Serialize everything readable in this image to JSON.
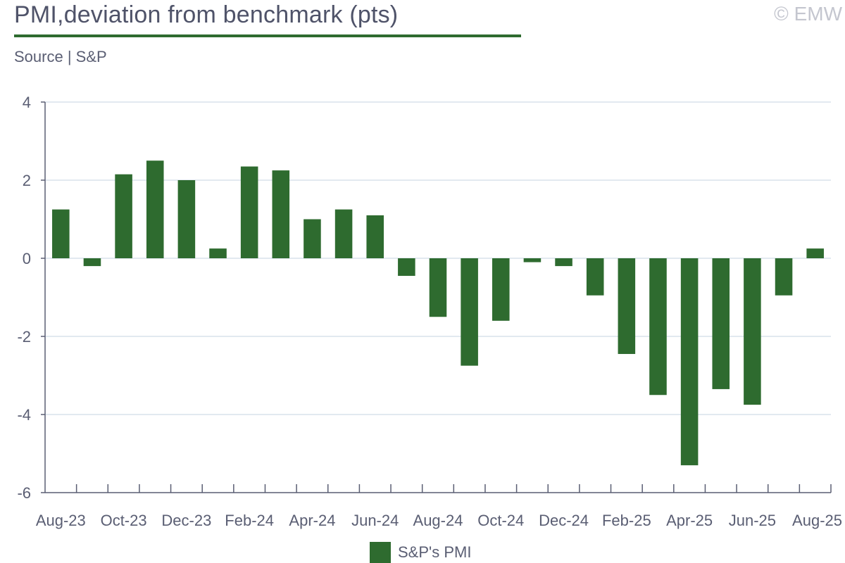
{
  "header": {
    "title": "PMI,deviation from benchmark (pts)",
    "copyright": "© EMW",
    "source": "Source | S&P"
  },
  "colors": {
    "bar": "#2e6b2f",
    "grid": "#d8e2ec",
    "axis": "#5a5e73"
  },
  "chart_data": {
    "type": "bar",
    "title": "PMI,deviation from benchmark (pts)",
    "xlabel": "",
    "ylabel": "",
    "ylim": [
      -6,
      4
    ],
    "yticks": [
      4,
      2,
      0,
      -2,
      -4,
      -6
    ],
    "categories": [
      "Aug-23",
      "Sep-23",
      "Oct-23",
      "Nov-23",
      "Dec-23",
      "Jan-24",
      "Feb-24",
      "Mar-24",
      "Apr-24",
      "May-24",
      "Jun-24",
      "Jul-24",
      "Aug-24",
      "Sep-24",
      "Oct-24",
      "Nov-24",
      "Dec-24",
      "Jan-25",
      "Feb-25",
      "Mar-25",
      "Apr-25",
      "May-25",
      "Jun-25",
      "Jul-25",
      "Aug-25"
    ],
    "x_tick_labels": [
      "Aug-23",
      "Oct-23",
      "Dec-23",
      "Feb-24",
      "Apr-24",
      "Jun-24",
      "Aug-24",
      "Oct-24",
      "Dec-24",
      "Feb-25",
      "Apr-25",
      "Jun-25",
      "Aug-25"
    ],
    "series": [
      {
        "name": "S&P's PMI",
        "values": [
          1.25,
          -0.2,
          2.15,
          2.5,
          2.0,
          0.25,
          2.35,
          2.25,
          1.0,
          1.25,
          1.1,
          -0.45,
          -1.5,
          -2.75,
          -1.6,
          -0.1,
          -0.2,
          -0.95,
          -2.45,
          -3.5,
          -5.3,
          -3.35,
          -3.75,
          -0.95,
          0.25
        ]
      }
    ],
    "legend": "bottom-center"
  }
}
